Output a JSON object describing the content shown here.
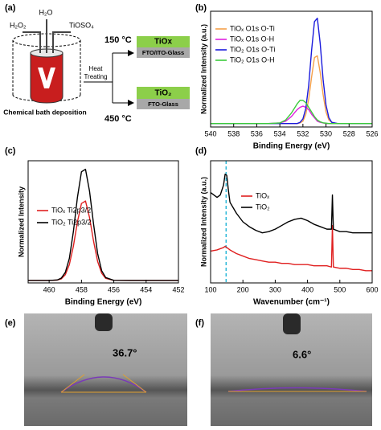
{
  "panel_labels": [
    "(a)",
    "(b)",
    "(c)",
    "(d)",
    "(e)",
    "(f)"
  ],
  "schematic": {
    "reagents": [
      "H₂O₂",
      "H₂O",
      "TiOSO₄"
    ],
    "caption": "Chemical bath deposition",
    "process": [
      "Heat",
      "Treating"
    ],
    "routes": [
      {
        "temperature": "150 °C",
        "film": "TiOx",
        "substrate": "FTO/ITO-Glass"
      },
      {
        "temperature": "450 °C",
        "film": "TiO₂",
        "substrate": "FTO-Glass"
      }
    ]
  },
  "chart_data": [
    {
      "type": "line",
      "xlabel": "Binding Energy (eV)",
      "ylabel": "Normalized Intensity (a.u.)",
      "xlim": [
        540,
        526
      ],
      "ylim": [
        0,
        1
      ],
      "xticks": [
        540,
        538,
        536,
        534,
        532,
        530,
        528,
        526
      ],
      "x": [
        540,
        538,
        536,
        535,
        534,
        533.5,
        533,
        532.75,
        532.5,
        532.25,
        532,
        531.75,
        531.5,
        531.25,
        531,
        530.75,
        530.5,
        530.25,
        530,
        529.75,
        529.5,
        529,
        528,
        527,
        526
      ],
      "series": [
        {
          "name": "TiOₓ O1s O-Ti",
          "color": "#f5a04a",
          "values": [
            0.03,
            0.03,
            0.03,
            0.03,
            0.03,
            0.03,
            0.03,
            0.03,
            0.03,
            0.035,
            0.05,
            0.11,
            0.24,
            0.43,
            0.6,
            0.615,
            0.47,
            0.28,
            0.13,
            0.06,
            0.04,
            0.03,
            0.03,
            0.03,
            0.03
          ]
        },
        {
          "name": "TiOₓ O1s O-H",
          "color": "#e020e0",
          "values": [
            0.03,
            0.03,
            0.03,
            0.03,
            0.035,
            0.05,
            0.09,
            0.12,
            0.15,
            0.17,
            0.18,
            0.17,
            0.15,
            0.11,
            0.08,
            0.05,
            0.04,
            0.035,
            0.03,
            0.03,
            0.03,
            0.03,
            0.03,
            0.03,
            0.03
          ]
        },
        {
          "name": "TiO₂ O1s O-Ti",
          "color": "#1a1adc",
          "values": [
            0.03,
            0.03,
            0.03,
            0.03,
            0.03,
            0.03,
            0.03,
            0.03,
            0.03,
            0.04,
            0.07,
            0.16,
            0.36,
            0.66,
            0.91,
            0.94,
            0.72,
            0.41,
            0.19,
            0.08,
            0.04,
            0.03,
            0.03,
            0.03,
            0.03
          ]
        },
        {
          "name": "TiO₂ O1s O-H",
          "color": "#3ccc3c",
          "values": [
            0.03,
            0.03,
            0.03,
            0.03,
            0.035,
            0.06,
            0.12,
            0.16,
            0.2,
            0.23,
            0.23,
            0.21,
            0.17,
            0.13,
            0.09,
            0.06,
            0.045,
            0.036,
            0.033,
            0.03,
            0.03,
            0.03,
            0.03,
            0.03,
            0.03
          ]
        }
      ]
    },
    {
      "type": "line",
      "xlabel": "Binding Energy (eV)",
      "ylabel": "Normalized Intensity",
      "xlim": [
        461.3,
        452
      ],
      "ylim": [
        0,
        1
      ],
      "xticks": [
        460,
        458,
        456,
        454,
        452
      ],
      "x": [
        461.3,
        460,
        459.5,
        459.25,
        459,
        458.75,
        458.5,
        458.25,
        458,
        457.75,
        457.5,
        457.25,
        457,
        456.75,
        456.5,
        456,
        455,
        454,
        453,
        452
      ],
      "series": [
        {
          "name": "TiOₓ Ti2p3/2",
          "color": "#e02020",
          "values": [
            0.02,
            0.02,
            0.023,
            0.033,
            0.067,
            0.15,
            0.3,
            0.5,
            0.65,
            0.67,
            0.535,
            0.34,
            0.176,
            0.079,
            0.037,
            0.021,
            0.02,
            0.02,
            0.02,
            0.02
          ]
        },
        {
          "name": "TiO₂ Ti2p3/2",
          "color": "#000000",
          "values": [
            0.02,
            0.02,
            0.024,
            0.039,
            0.086,
            0.2,
            0.42,
            0.7,
            0.91,
            0.93,
            0.75,
            0.48,
            0.24,
            0.1,
            0.044,
            0.021,
            0.02,
            0.02,
            0.02,
            0.02
          ]
        }
      ]
    },
    {
      "type": "line",
      "xlabel": "Wavenumber (cm⁻¹)",
      "ylabel": "Normalized Intensity (a.u.)",
      "xlim": [
        100,
        600
      ],
      "ylim": [
        0,
        1
      ],
      "xticks": [
        100,
        200,
        300,
        400,
        500,
        600
      ],
      "marker_x": 148,
      "x": [
        100,
        120,
        130,
        140,
        145,
        150,
        155,
        160,
        180,
        200,
        220,
        240,
        260,
        280,
        300,
        320,
        340,
        360,
        380,
        400,
        420,
        440,
        460,
        474,
        477,
        480,
        500,
        520,
        540,
        560,
        580,
        600
      ],
      "series": [
        {
          "name": "TiOₓ",
          "color": "#e02020",
          "values": [
            0.26,
            0.27,
            0.28,
            0.29,
            0.3,
            0.29,
            0.28,
            0.27,
            0.24,
            0.22,
            0.2,
            0.19,
            0.18,
            0.17,
            0.17,
            0.16,
            0.16,
            0.15,
            0.15,
            0.15,
            0.14,
            0.14,
            0.14,
            0.13,
            0.47,
            0.13,
            0.12,
            0.12,
            0.11,
            0.11,
            0.1,
            0.1
          ]
        },
        {
          "name": "TiO₂",
          "color": "#000000",
          "values": [
            0.74,
            0.7,
            0.72,
            0.8,
            0.89,
            0.88,
            0.76,
            0.66,
            0.57,
            0.5,
            0.46,
            0.43,
            0.41,
            0.42,
            0.44,
            0.47,
            0.5,
            0.52,
            0.53,
            0.51,
            0.48,
            0.46,
            0.44,
            0.44,
            0.72,
            0.44,
            0.42,
            0.42,
            0.41,
            0.41,
            0.41,
            0.41
          ]
        }
      ]
    }
  ],
  "contact_angles": [
    "36.7°",
    "6.6°"
  ]
}
